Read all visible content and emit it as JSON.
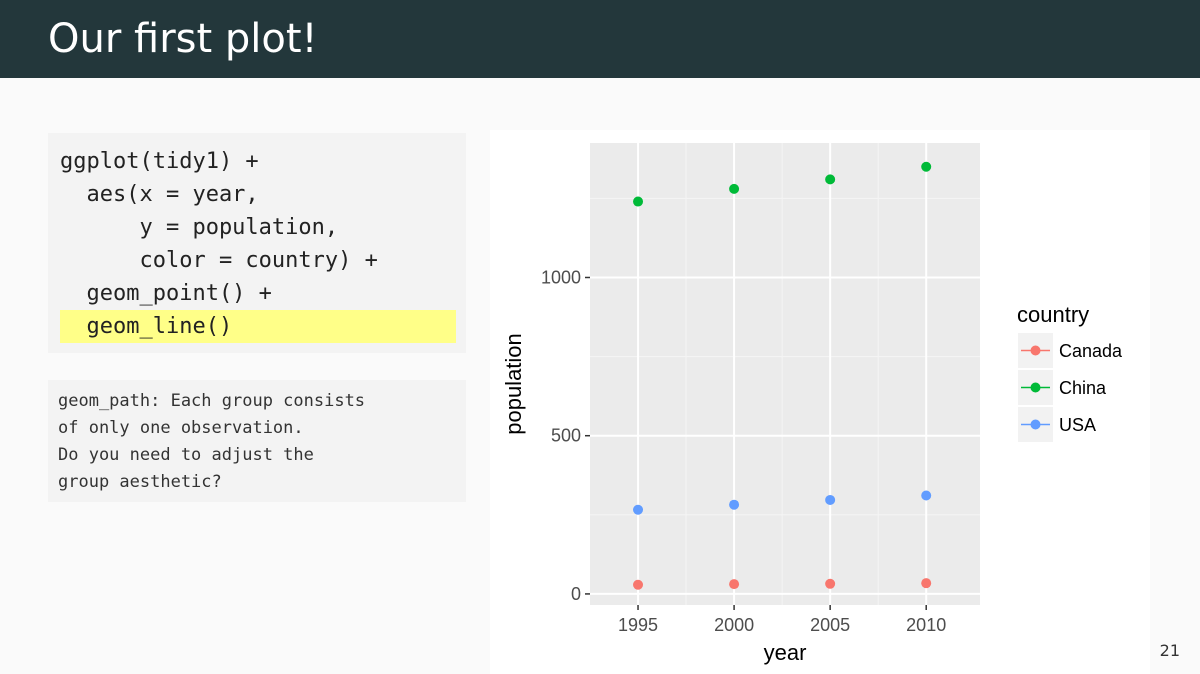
{
  "slide": {
    "title": "Our first plot!",
    "page_number": "21"
  },
  "code": {
    "lines": [
      "ggplot(tidy1) +",
      "  aes(x = year,",
      "      y = population,",
      "      color = country) +",
      "  geom_point() +",
      "  geom_line()"
    ],
    "highlight_color": "#ffff88"
  },
  "message": {
    "lines": [
      "geom_path: Each group consists",
      "of only one observation.",
      "Do you need to adjust the",
      "group aesthetic?"
    ]
  },
  "chart_data": {
    "type": "scatter",
    "xlabel": "year",
    "ylabel": "population",
    "x_ticks": [
      1995,
      2000,
      2005,
      2010
    ],
    "y_ticks": [
      0,
      500,
      1000
    ],
    "xlim": [
      1992.5,
      2012.8
    ],
    "ylim": [
      -35,
      1425
    ],
    "grid": true,
    "legend_title": "country",
    "legend_position": "right",
    "series": [
      {
        "name": "Canada",
        "color": "#f8766d",
        "x": [
          1995,
          2000,
          2005,
          2010
        ],
        "y": [
          29,
          31,
          32,
          34
        ]
      },
      {
        "name": "China",
        "color": "#00ba38",
        "x": [
          1995,
          2000,
          2005,
          2010
        ],
        "y": [
          1240,
          1280,
          1310,
          1350
        ]
      },
      {
        "name": "USA",
        "color": "#619cff",
        "x": [
          1995,
          2000,
          2005,
          2010
        ],
        "y": [
          266,
          282,
          297,
          311
        ]
      }
    ]
  }
}
